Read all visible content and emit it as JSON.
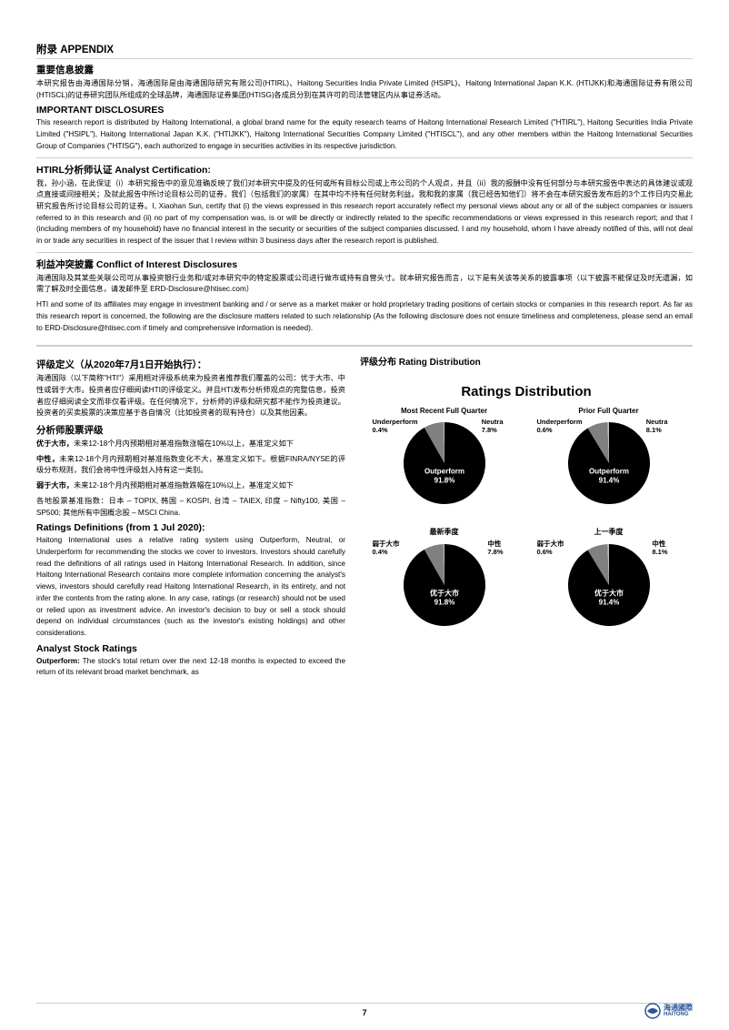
{
  "appendix": {
    "title": "附录 APPENDIX",
    "important_cn_title": "重要信息披露",
    "important_cn_body": "本研究报告由海通国际分销，海通国际是由海通国际研究有限公司(HTIRL)、Haitong Securities India Private Limited (HSIPL)、Haitong International Japan K.K. (HTIJKK)和海通国际证券有限公司(HTISCL)的证券研究团队所组成的全球品牌，海通国际证券集团(HTISG)各成员分别在其许可的司法管辖区内从事证券活动。",
    "important_en_title": "IMPORTANT DISCLOSURES",
    "important_en_body": "This research report is distributed by Haitong International, a global brand name for the equity research teams of Haitong International Research Limited (\"HTIRL\"), Haitong Securities India Private Limited (\"HSIPL\"), Haitong International Japan K.K. (\"HTIJKK\"), Haitong International Securities Company Limited (\"HTISCL\"), and any other members within the Haitong International Securities Group of Companies (\"HTISG\"), each authorized to engage in securities activities in its respective jurisdiction.",
    "analyst_cert_title": "HTIRL分析师认证 Analyst Certification:",
    "analyst_cert_body": "我，孙小涵，在此保证（i）本研究报告中的意见准确反映了我们对本研究中提及的任何或所有目标公司或上市公司的个人观点，并且（ii）我的报酬中没有任何部分与本研究报告中表达的具体建议或观点直接或间接相关；及就此报告中所讨论目标公司的证券，我们（包括我们的家属）在其中均不持有任何财务利益。我和我的家属（我已经告知他们）将不会在本研究报告发布后的3个工作日内交易此研究报告所讨论目标公司的证券。I, Xiaohan Sun, certify that (i) the views expressed in this research report accurately reflect my personal views about any or all of the subject companies or issuers referred to in this research and (ii) no part of my compensation was, is or will be directly or indirectly related to the specific recommendations or views expressed in this research report; and that I (including members of my household) have no financial interest in the security or securities of the subject companies discussed. I and my household, whom I have already notified of this, will not deal in or trade any securities in respect of the issuer that I review within 3 business days after the research report is published.",
    "conflict_title": "利益冲突披露 Conflict of Interest Disclosures",
    "conflict_body_cn": "海通国际及其某些关联公司可从事投资银行业务和/或对本研究中的特定股票或公司进行做市或持有自营头寸。就本研究报告而言，以下是有关该等关系的披露事项（以下披露不能保证及时无遗漏，如需了解及时全面信息，请发邮件至 ERD-Disclosure@htisec.com）",
    "conflict_body_en": "HTI and some of its affiliates may engage in investment banking and / or serve as a market maker or hold proprietary trading positions of certain stocks or companies in this research report. As far as this research report is concerned, the following are the disclosure matters related to such relationship (As the following disclosure does not ensure timeliness and completeness, please send an email to ERD-Disclosure@htisec.com if timely and comprehensive information is needed)."
  },
  "ratings_def": {
    "title_cn": "评级定义（从2020年7月1日开始执行）：",
    "body_cn_1": "海通国际（以下简称\"HTI\"）采用相对评级系统来为投资者推荐我们覆盖的公司：优于大市、中性或弱于大市。投资者应仔细阅读HTI的评级定义。并且HTI发布分析师观点的完整信息，投资者应仔细阅读全文而非仅看评级。在任何情况下，分析师的评级和研究都不能作为投资建议。投资者的买卖股票的决策应基于各自情况（比如投资者的现有持仓）以及其他因素。",
    "analyst_ratings_cn_title": "分析师股票评级",
    "outperform_cn_label": "优于大市，",
    "outperform_cn": "未来12-18个月内预期相对基准指数涨幅在10%以上，基准定义如下",
    "neutral_cn_label": "中性，",
    "neutral_cn": "未来12-18个月内预期相对基准指数变化不大，基准定义如下。根据FINRA/NYSE的评级分布规则，我们会将中性评级划入持有这一类别。",
    "underperform_cn_label": "弱于大市，",
    "underperform_cn": "未来12-18个月内预期相对基准指数跌幅在10%以上，基准定义如下",
    "benchmarks_cn": "各地股票基准指数：日本 – TOPIX, 韩国 – KOSPI, 台湾 – TAIEX, 印度 – Nifty100, 美国 – SP500; 其他所有中国概念股 – MSCI China.",
    "title_en": "Ratings Definitions (from 1 Jul 2020):",
    "body_en": "Haitong International uses a relative rating system using Outperform, Neutral, or Underperform for recommending the stocks we cover to investors. Investors should carefully read the definitions of all ratings used in Haitong International Research. In addition, since Haitong International Research contains more complete information concerning the analyst's views, investors should carefully read Haitong International Research, in its entirety, and not infer the contents from the rating alone. In any case, ratings (or research) should not be used or relied upon as investment advice. An investor's decision to buy or sell a stock should depend on individual circumstances (such as the investor's existing holdings) and other considerations.",
    "analyst_en_title": "Analyst Stock Ratings",
    "outperform_en_label": "Outperform:",
    "outperform_en": " The stock's total return over the next 12-18 months is expected to exceed the return of its relevant broad market benchmark, as"
  },
  "distribution": {
    "header": "评级分布 Rating Distribution",
    "chart_title": "Ratings Distribution",
    "charts": [
      {
        "top_label": "Most Recent Full Quarter",
        "bottom_label": "91.8%",
        "slices": [
          {
            "name": "Outperform",
            "value": 91.8,
            "color": "#000000",
            "label": "Outperform",
            "pct": "91.8%"
          },
          {
            "name": "Neutral",
            "value": 7.8,
            "color": "#808080",
            "label": "Neutra",
            "pct": "7.8%"
          },
          {
            "name": "Underperform",
            "value": 0.4,
            "color": "#bfbfbf",
            "label": "Underperform",
            "pct": "0.4%"
          }
        ],
        "label_color": "#ffffff",
        "main_seg_text": "Outperform"
      },
      {
        "top_label": "Prior Full Quarter",
        "bottom_label": "91.4%",
        "slices": [
          {
            "name": "Outperform",
            "value": 91.4,
            "color": "#000000",
            "label": "Outperform",
            "pct": "91.4%"
          },
          {
            "name": "Neutral",
            "value": 8.1,
            "color": "#808080",
            "label": "Neutra",
            "pct": "8.1%"
          },
          {
            "name": "Underperform",
            "value": 0.6,
            "color": "#bfbfbf",
            "label": "Underperform",
            "pct": "0.6%"
          }
        ],
        "label_color": "#ffffff",
        "main_seg_text": "Outperform"
      },
      {
        "top_label": "最新季度",
        "bottom_label": "91.8%",
        "slices": [
          {
            "name": "优于大市",
            "value": 91.8,
            "color": "#000000",
            "label": "优于大市",
            "pct": "91.8%"
          },
          {
            "name": "中性",
            "value": 7.8,
            "color": "#808080",
            "label": "中性",
            "pct": "7.8%"
          },
          {
            "name": "弱于大市",
            "value": 0.4,
            "color": "#bfbfbf",
            "label": "弱于大市",
            "pct": "0.4%"
          }
        ],
        "label_color": "#ffffff",
        "main_seg_text": "优于大市"
      },
      {
        "top_label": "上一季度",
        "bottom_label": "91.4%",
        "slices": [
          {
            "name": "优于大市",
            "value": 91.4,
            "color": "#000000",
            "label": "优于大市",
            "pct": "91.4%"
          },
          {
            "name": "中性",
            "value": 8.1,
            "color": "#808080",
            "label": "中性",
            "pct": "8.1%"
          },
          {
            "name": "弱于大市",
            "value": 0.6,
            "color": "#bfbfbf",
            "label": "弱于大市",
            "pct": "0.6%"
          }
        ],
        "label_color": "#ffffff",
        "main_seg_text": "优于大市"
      }
    ],
    "pie_radius": 45,
    "background": "#ffffff",
    "ann_fontsize": 7.5
  },
  "footer": {
    "page": "7",
    "brand_cn": "海通國際",
    "brand_en": "HAITONG",
    "brand_color": "#2a5599"
  }
}
